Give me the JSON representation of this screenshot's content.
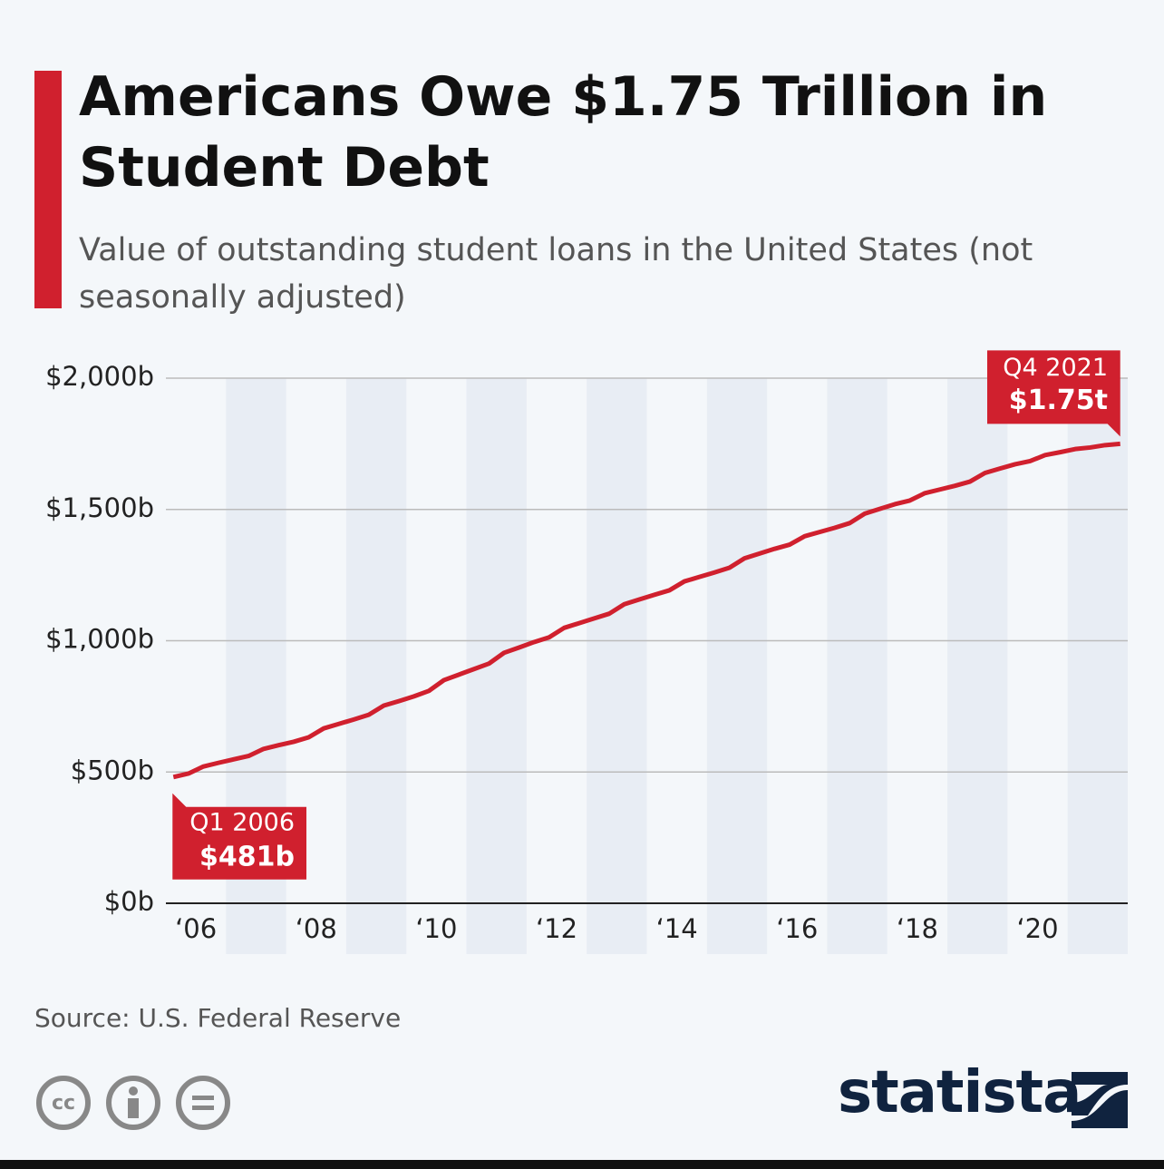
{
  "chart_data": {
    "type": "line",
    "title": "Americans Owe $1.75 Trillion in Student Debt",
    "subtitle": "Value of outstanding student loans in the United States (not seasonally adjusted)",
    "x": [
      2006.125,
      2006.375,
      2006.625,
      2006.875,
      2007.125,
      2007.375,
      2007.625,
      2007.875,
      2008.125,
      2008.375,
      2008.625,
      2008.875,
      2009.125,
      2009.375,
      2009.625,
      2009.875,
      2010.125,
      2010.375,
      2010.625,
      2010.875,
      2011.125,
      2011.375,
      2011.625,
      2011.875,
      2012.125,
      2012.375,
      2012.625,
      2012.875,
      2013.125,
      2013.375,
      2013.625,
      2013.875,
      2014.125,
      2014.375,
      2014.625,
      2014.875,
      2015.125,
      2015.375,
      2015.625,
      2015.875,
      2016.125,
      2016.375,
      2016.625,
      2016.875,
      2017.125,
      2017.375,
      2017.625,
      2017.875,
      2018.125,
      2018.375,
      2018.625,
      2018.875,
      2019.125,
      2019.375,
      2019.625,
      2019.875,
      2020.125,
      2020.375,
      2020.625,
      2020.875,
      2021.125,
      2021.375,
      2021.625,
      2021.875
    ],
    "values": [
      481,
      494,
      521,
      535,
      548,
      561,
      588,
      602,
      615,
      632,
      666,
      683,
      700,
      718,
      753,
      770,
      788,
      809,
      850,
      871,
      892,
      913,
      954,
      974,
      995,
      1013,
      1049,
      1067,
      1085,
      1103,
      1139,
      1157,
      1175,
      1192,
      1226,
      1243,
      1260,
      1278,
      1314,
      1332,
      1350,
      1366,
      1398,
      1414,
      1430,
      1448,
      1484,
      1502,
      1520,
      1534,
      1562,
      1576,
      1590,
      1606,
      1639,
      1656,
      1672,
      1684,
      1707,
      1718,
      1730,
      1736,
      1745,
      1750
    ],
    "value_labels": [
      "$481b",
      null,
      null,
      null,
      null,
      null,
      null,
      null,
      null,
      null,
      null,
      null,
      null,
      null,
      null,
      null,
      null,
      null,
      null,
      null,
      null,
      null,
      null,
      null,
      null,
      null,
      null,
      null,
      null,
      null,
      null,
      null,
      null,
      null,
      null,
      null,
      null,
      null,
      null,
      null,
      null,
      null,
      null,
      null,
      null,
      null,
      null,
      null,
      null,
      null,
      null,
      null,
      null,
      null,
      null,
      null,
      null,
      null,
      null,
      null,
      null,
      null,
      null,
      "$1.75t"
    ],
    "annotations": [
      "Q1 2006",
      "Q4 2021"
    ],
    "color": "#d0202e",
    "xlim": [
      2006,
      2022
    ],
    "xticks": [
      {
        "value": 2006.5,
        "label": "‘06"
      },
      {
        "value": 2008.5,
        "label": "‘08"
      },
      {
        "value": 2010.5,
        "label": "‘10"
      },
      {
        "value": 2012.5,
        "label": "‘12"
      },
      {
        "value": 2014.5,
        "label": "‘14"
      },
      {
        "value": 2016.5,
        "label": "‘16"
      },
      {
        "value": 2018.5,
        "label": "‘18"
      },
      {
        "value": 2020.5,
        "label": "‘20"
      }
    ],
    "ylim": [
      0,
      2000
    ],
    "yticks": [
      {
        "value": 0,
        "label": "$0b"
      },
      {
        "value": 500,
        "label": "$500b"
      },
      {
        "value": 1000,
        "label": "$1,000b"
      },
      {
        "value": 1500,
        "label": "$1,500b"
      },
      {
        "value": 2000,
        "label": "$2,000b"
      }
    ],
    "grid": true,
    "source": "Source: U.S. Federal Reserve",
    "cc_label": "cc",
    "brand": "statista"
  }
}
